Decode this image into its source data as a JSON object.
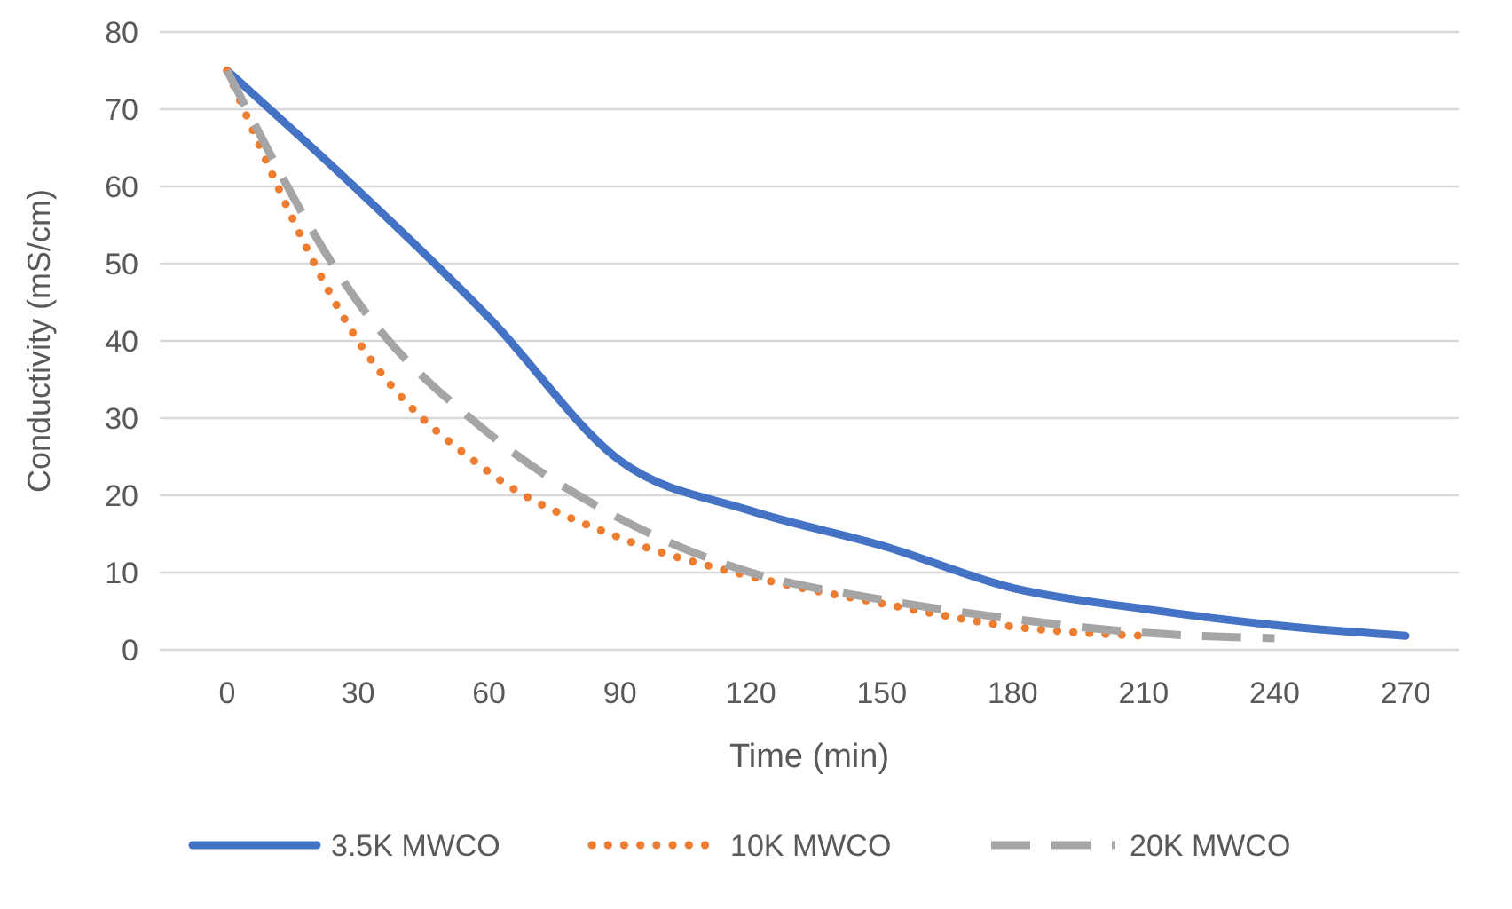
{
  "chart_data": {
    "type": "line",
    "xlabel": "Time (min)",
    "ylabel": "Conductivity (mS/cm)",
    "categories": [
      "0",
      "30",
      "60",
      "90",
      "120",
      "150",
      "180",
      "210",
      "240",
      "270"
    ],
    "ylim": [
      0,
      80
    ],
    "yticks": [
      0,
      10,
      20,
      30,
      40,
      50,
      60,
      70,
      80
    ],
    "grid": "y",
    "legend": "bottom",
    "marker": "none",
    "series": [
      {
        "name": "3.5K MWCO",
        "color": "#4472c4",
        "line_style": "solid",
        "values": [
          75,
          59.5,
          43,
          24.5,
          18,
          13.5,
          8,
          5.3,
          3.2,
          1.8
        ]
      },
      {
        "name": "10K MWCO",
        "color": "#ed7d31",
        "line_style": "dotted",
        "values": [
          75,
          40,
          23,
          14.5,
          9.5,
          6,
          3,
          1.8,
          null,
          null
        ]
      },
      {
        "name": "20K MWCO",
        "color": "#a5a5a5",
        "line_style": "dashed",
        "values": [
          75,
          45,
          28,
          17,
          10,
          6.5,
          4,
          2.2,
          1.5,
          null
        ]
      }
    ]
  }
}
